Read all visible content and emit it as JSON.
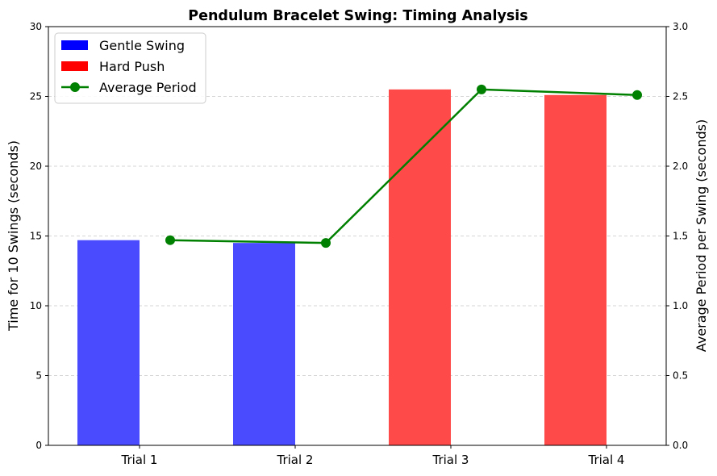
{
  "chart_data": {
    "type": "bar",
    "title": "Pendulum Bracelet Swing: Timing Analysis",
    "categories": [
      "Trial 1",
      "Trial 2",
      "Trial 3",
      "Trial 4"
    ],
    "bars": {
      "values": [
        14.7,
        14.5,
        25.5,
        25.1
      ],
      "condition": [
        "Gentle Swing",
        "Gentle Swing",
        "Hard Push",
        "Hard Push"
      ]
    },
    "line": {
      "name": "Average Period",
      "values": [
        1.47,
        1.45,
        2.55,
        2.51
      ]
    },
    "ylabel_left": "Time for 10 Swings (seconds)",
    "ylabel_right": "Average Period per Swing (seconds)",
    "ylim_left": [
      0,
      30
    ],
    "ylim_right": [
      0,
      3.0
    ],
    "yticks_left": [
      "0",
      "5",
      "10",
      "15",
      "20",
      "25",
      "30"
    ],
    "yticks_right": [
      "0.0",
      "0.5",
      "1.0",
      "1.5",
      "2.0",
      "2.5",
      "3.0"
    ],
    "grid": "horizontal dashed",
    "legend_position": "top-left",
    "legend": [
      {
        "label": "Gentle Swing",
        "kind": "patch",
        "color": "#0000ff"
      },
      {
        "label": "Hard Push",
        "kind": "patch",
        "color": "#ff0000"
      },
      {
        "label": "Average Period",
        "kind": "line-marker",
        "color": "#008000"
      }
    ],
    "colors": {
      "Gentle Swing": "#4a4aff",
      "Hard Push": "#ff4a4a",
      "line": "#008000"
    }
  }
}
